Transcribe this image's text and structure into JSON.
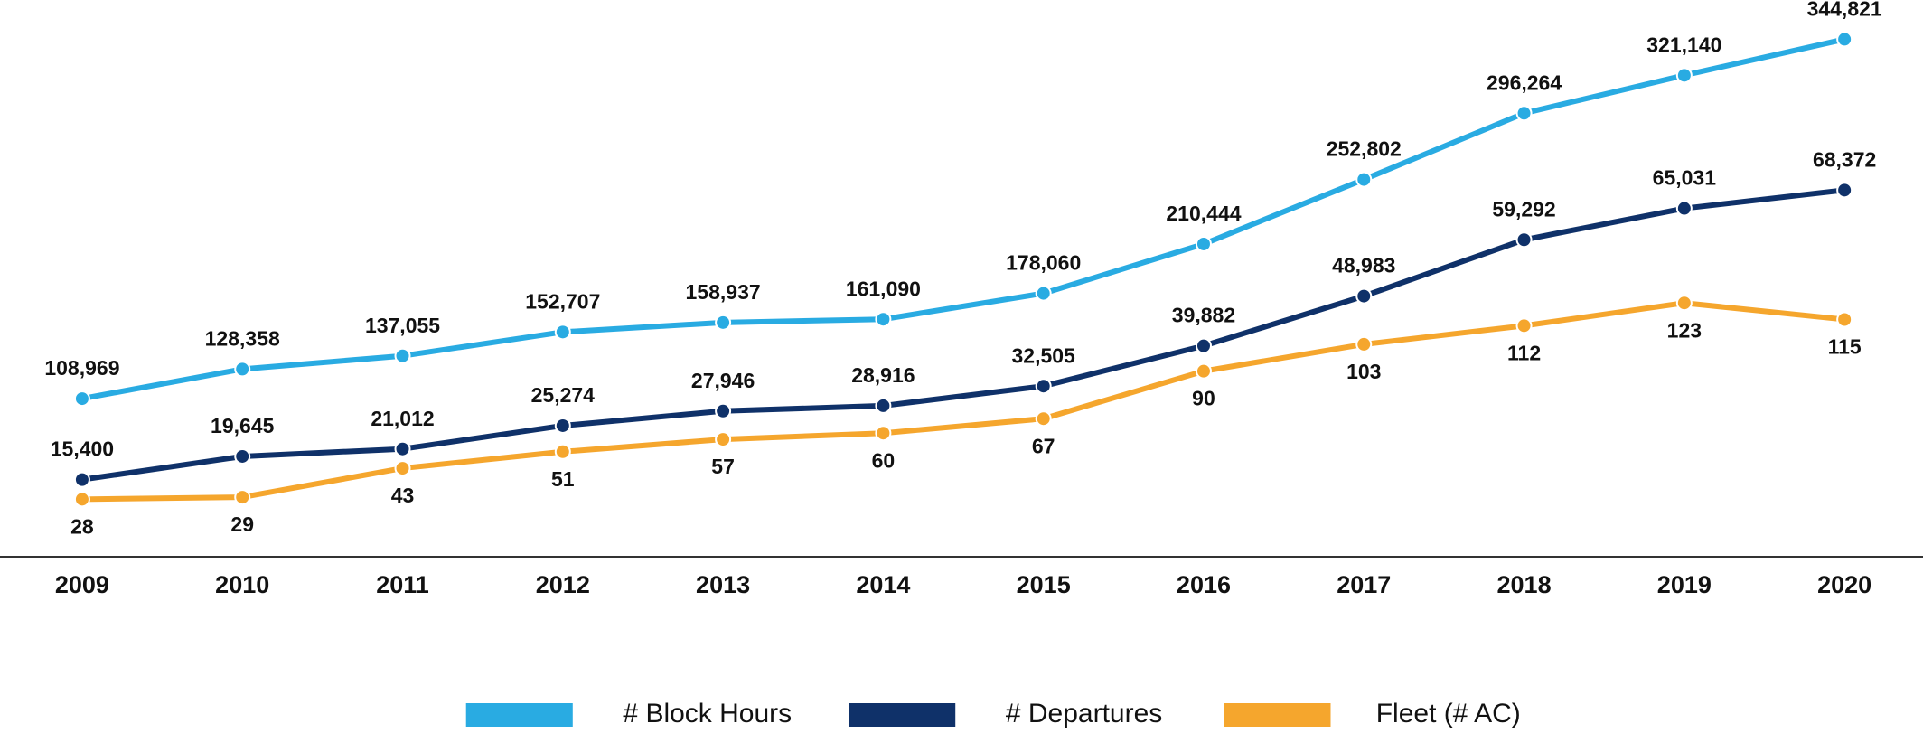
{
  "chart_data": {
    "type": "line",
    "categories": [
      "2009",
      "2010",
      "2011",
      "2012",
      "2013",
      "2014",
      "2015",
      "2016",
      "2017",
      "2018",
      "2019",
      "2020"
    ],
    "series": [
      {
        "name": "# Block Hours",
        "color": "#29abe2",
        "values": [
          108969,
          128358,
          137055,
          152707,
          158937,
          161090,
          178060,
          210444,
          252802,
          296264,
          321140,
          344821
        ],
        "value_labels": [
          "108,969",
          "128,358",
          "137,055",
          "152,707",
          "158,937",
          "161,090",
          "178,060",
          "210,444",
          "252,802",
          "296,264",
          "321,140",
          "344,821"
        ]
      },
      {
        "name": "# Departures",
        "color": "#0f3169",
        "values": [
          15400,
          19645,
          21012,
          25274,
          27946,
          28916,
          32505,
          39882,
          48983,
          59292,
          65031,
          68372
        ],
        "value_labels": [
          "15,400",
          "19,645",
          "21,012",
          "25,274",
          "27,946",
          "28,916",
          "32,505",
          "39,882",
          "48,983",
          "59,292",
          "65,031",
          "68,372"
        ]
      },
      {
        "name": "Fleet (# AC)",
        "color": "#f5a62d",
        "values": [
          28,
          29,
          43,
          51,
          57,
          60,
          67,
          90,
          103,
          112,
          123,
          115
        ]
      }
    ],
    "legend": "bottom"
  }
}
